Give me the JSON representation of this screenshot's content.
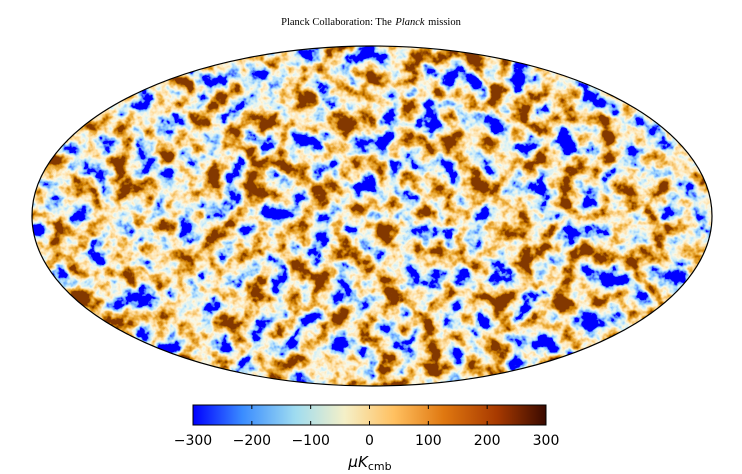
{
  "header": {
    "prefix": "Planck Collaboration: The",
    "emphasis": "Planck",
    "suffix": "mission"
  },
  "colorbar": {
    "lim": [
      -300,
      300
    ],
    "ticks": [
      {
        "value": -300,
        "label": "−300"
      },
      {
        "value": -200,
        "label": "−200"
      },
      {
        "value": -100,
        "label": "−100"
      },
      0,
      100,
      200,
      300
    ],
    "unit": {
      "base": "μK",
      "sub": "cmb"
    }
  }
}
